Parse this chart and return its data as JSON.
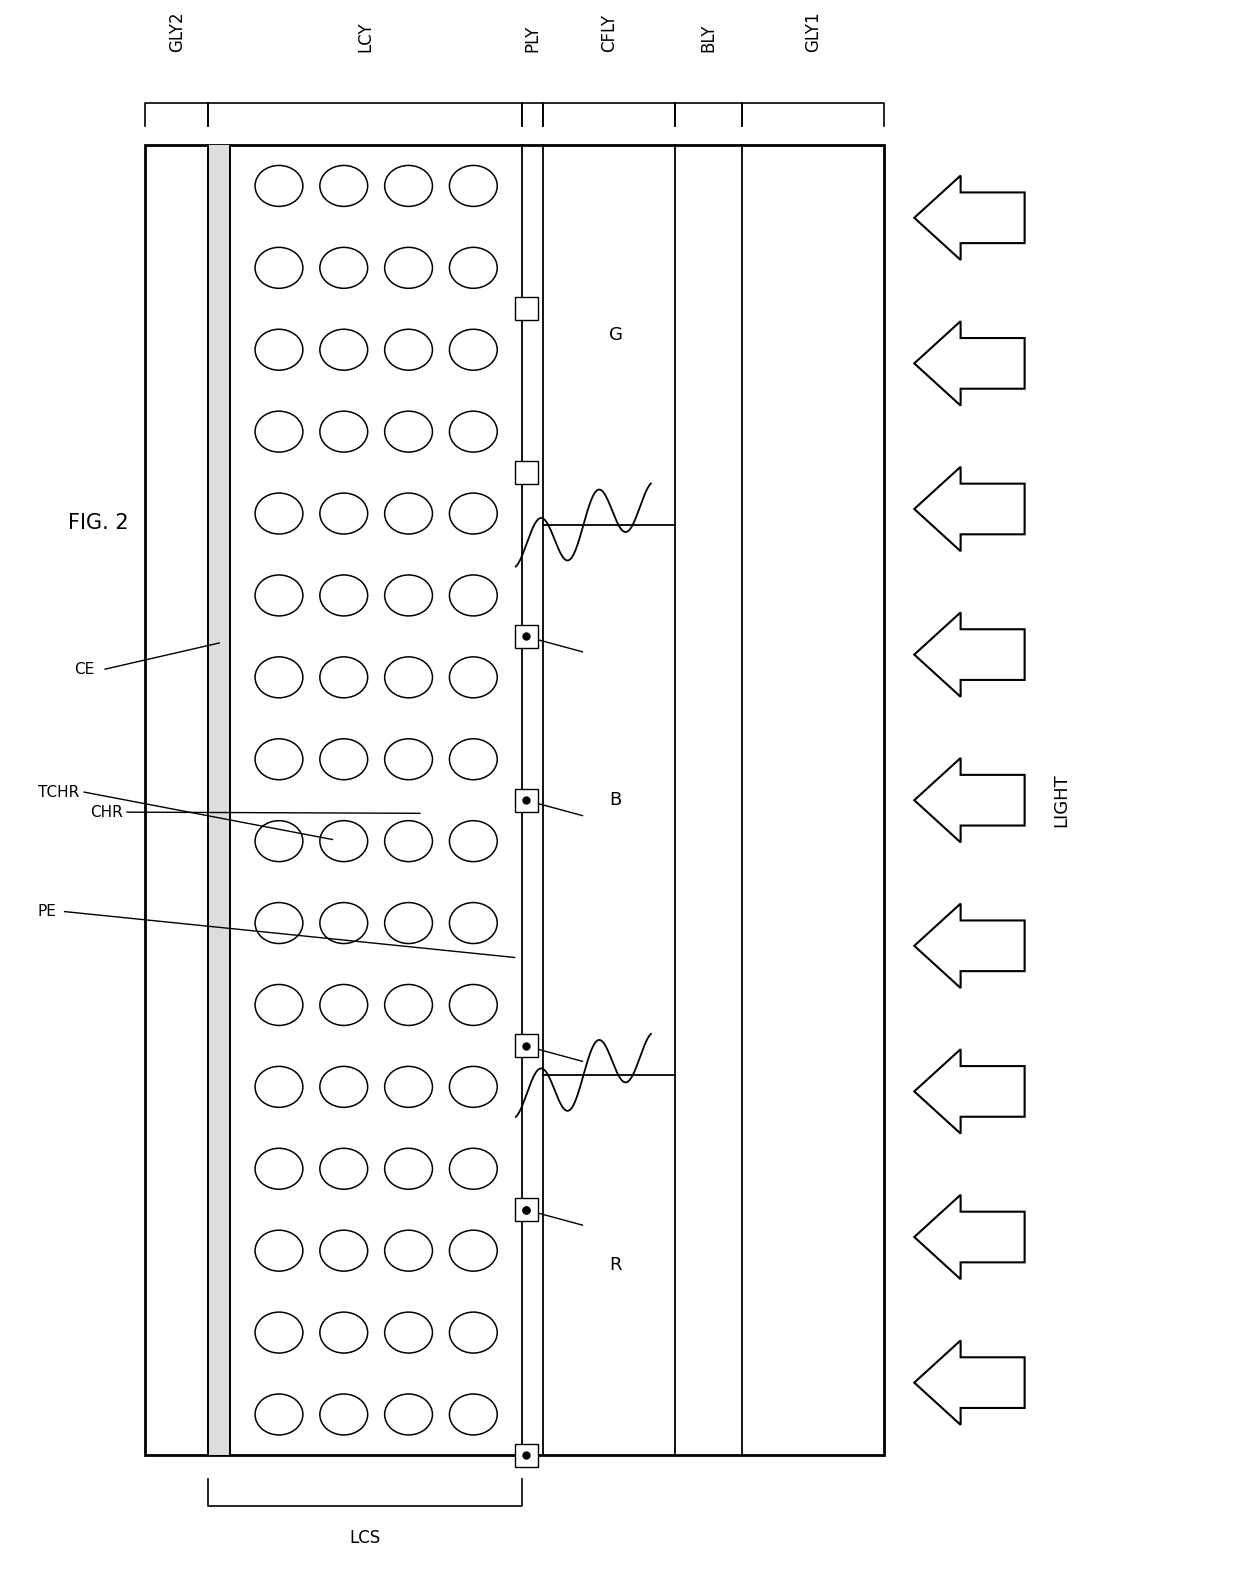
{
  "fig_label": "FIG. 2",
  "background": "#ffffff",
  "layer_labels_top": [
    "GLY2",
    "LCY",
    "PLY",
    "CFLY",
    "BLY",
    "GLY1"
  ],
  "layer_label_bottom": "LCS",
  "light_label": "LIGHT",
  "left_labels": [
    "CE",
    "TCHR",
    "CHR",
    "PE"
  ],
  "color_filter_labels": [
    "G",
    "B",
    "R"
  ],
  "n_ellipse_rows": 16,
  "n_ellipse_cols": 4,
  "n_electrodes": 7,
  "n_arrows": 9
}
